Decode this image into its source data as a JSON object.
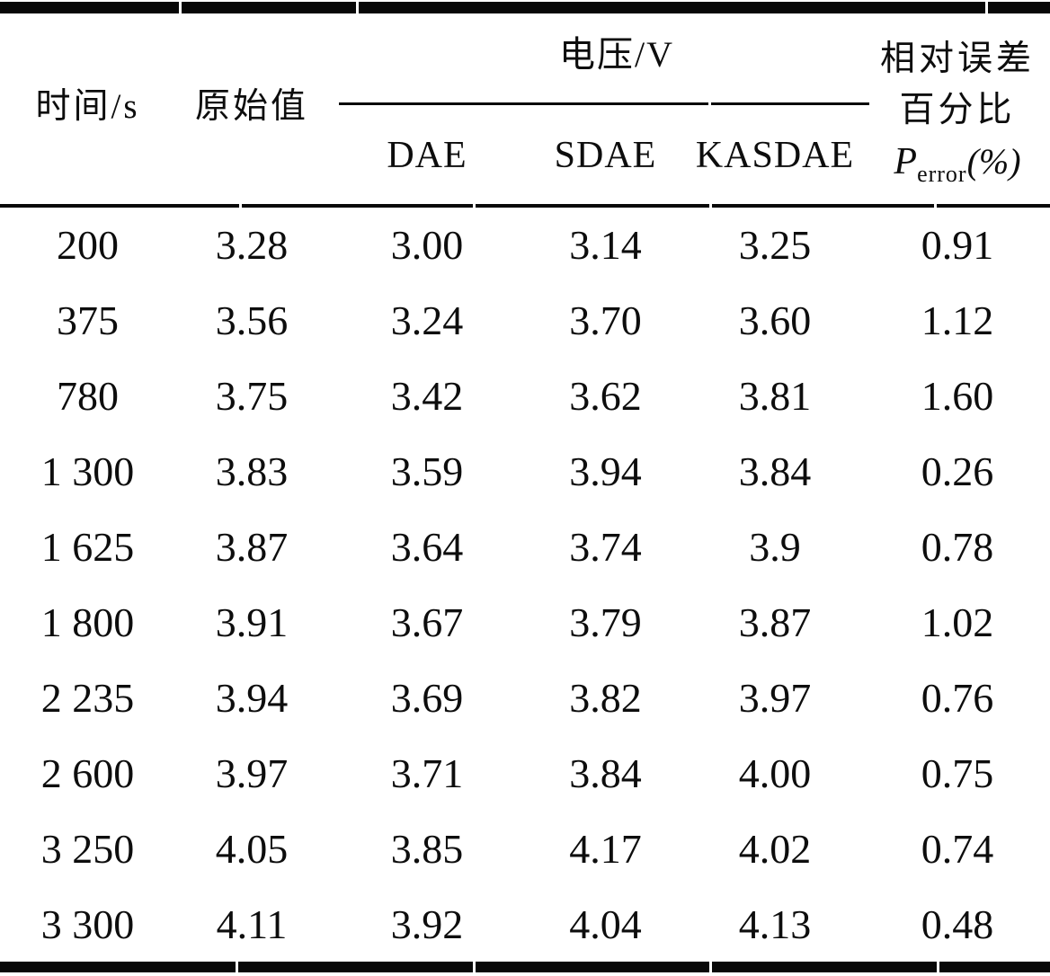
{
  "header": {
    "time": "时间/s",
    "original": "原始值",
    "voltage_group": "电压/V",
    "method_dae": "DAE",
    "method_sdae": "SDAE",
    "method_kasdae": "KASDAE",
    "error_line1": "相对误差",
    "error_line2": "百分比",
    "error_symbol": "P",
    "error_subscript": "error",
    "error_unit": "(%)"
  },
  "chart_data": {
    "type": "table",
    "columns": [
      "时间/s",
      "原始值",
      "电压/V DAE",
      "电压/V SDAE",
      "电压/V KASDAE",
      "相对误差百分比 Perror(%)"
    ],
    "rows": [
      [
        "200",
        "3.28",
        "3.00",
        "3.14",
        "3.25",
        "0.91"
      ],
      [
        "375",
        "3.56",
        "3.24",
        "3.70",
        "3.60",
        "1.12"
      ],
      [
        "780",
        "3.75",
        "3.42",
        "3.62",
        "3.81",
        "1.60"
      ],
      [
        "1 300",
        "3.83",
        "3.59",
        "3.94",
        "3.84",
        "0.26"
      ],
      [
        "1 625",
        "3.87",
        "3.64",
        "3.74",
        "3.9",
        "0.78"
      ],
      [
        "1 800",
        "3.91",
        "3.67",
        "3.79",
        "3.87",
        "1.02"
      ],
      [
        "2 235",
        "3.94",
        "3.69",
        "3.82",
        "3.97",
        "0.76"
      ],
      [
        "2 600",
        "3.97",
        "3.71",
        "3.84",
        "4.00",
        "0.75"
      ],
      [
        "3 250",
        "4.05",
        "3.85",
        "4.17",
        "4.02",
        "0.74"
      ],
      [
        "3 300",
        "4.11",
        "3.92",
        "4.04",
        "4.13",
        "0.48"
      ]
    ]
  },
  "colors": {
    "text": "#0d0d0d",
    "rule": "#080808",
    "background": "#ffffff"
  }
}
